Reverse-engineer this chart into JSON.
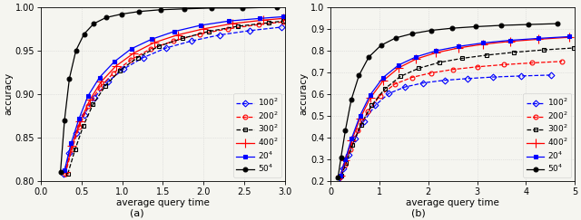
{
  "xlabel": "average query time",
  "ylabel": "accuracy",
  "subplot_a": {
    "label": "(a)",
    "xlim": [
      0,
      3
    ],
    "ylim": [
      0.8,
      1.0
    ],
    "yticks": [
      0.8,
      0.85,
      0.9,
      0.95,
      1.0
    ],
    "xticks": [
      0,
      0.5,
      1,
      1.5,
      2,
      2.5,
      3
    ],
    "series": [
      {
        "label": "100$^2$",
        "color": "#0000ff",
        "linestyle": "--",
        "marker": "D",
        "marker_fill": "none",
        "x": [
          0.28,
          0.35,
          0.43,
          0.53,
          0.66,
          0.82,
          1.02,
          1.26,
          1.54,
          1.85,
          2.2,
          2.57,
          2.96
        ],
        "y": [
          0.808,
          0.832,
          0.855,
          0.876,
          0.896,
          0.914,
          0.929,
          0.942,
          0.953,
          0.961,
          0.968,
          0.973,
          0.977
        ]
      },
      {
        "label": "200$^2$",
        "color": "#ff0000",
        "linestyle": "--",
        "marker": "o",
        "marker_fill": "none",
        "x": [
          0.3,
          0.38,
          0.47,
          0.58,
          0.72,
          0.89,
          1.1,
          1.35,
          1.63,
          1.95,
          2.3,
          2.68,
          2.98
        ],
        "y": [
          0.808,
          0.836,
          0.862,
          0.886,
          0.907,
          0.924,
          0.939,
          0.952,
          0.961,
          0.969,
          0.975,
          0.98,
          0.983
        ]
      },
      {
        "label": "300$^2$",
        "color": "#000000",
        "linestyle": "--",
        "marker": "s",
        "marker_fill": "none",
        "x": [
          0.33,
          0.42,
          0.52,
          0.64,
          0.79,
          0.97,
          1.19,
          1.45,
          1.74,
          2.06,
          2.42,
          2.8,
          2.98
        ],
        "y": [
          0.808,
          0.836,
          0.863,
          0.888,
          0.909,
          0.927,
          0.942,
          0.955,
          0.964,
          0.972,
          0.978,
          0.982,
          0.984
        ]
      },
      {
        "label": "400$^2$",
        "color": "#ff0000",
        "linestyle": "-",
        "marker": "+",
        "marker_fill": "full",
        "x": [
          0.3,
          0.38,
          0.48,
          0.6,
          0.74,
          0.92,
          1.14,
          1.39,
          1.68,
          2.0,
          2.35,
          2.73,
          2.98
        ],
        "y": [
          0.81,
          0.84,
          0.868,
          0.893,
          0.914,
          0.932,
          0.947,
          0.959,
          0.968,
          0.975,
          0.981,
          0.985,
          0.987
        ]
      },
      {
        "label": "20$^4$",
        "color": "#0000ff",
        "linestyle": "-",
        "marker": "s",
        "marker_fill": "full",
        "x": [
          0.29,
          0.37,
          0.47,
          0.58,
          0.72,
          0.9,
          1.11,
          1.36,
          1.64,
          1.96,
          2.31,
          2.69,
          2.98
        ],
        "y": [
          0.812,
          0.843,
          0.872,
          0.898,
          0.919,
          0.937,
          0.952,
          0.963,
          0.972,
          0.979,
          0.984,
          0.987,
          0.989
        ]
      },
      {
        "label": "50$^4$",
        "color": "#000000",
        "linestyle": "-",
        "marker": "o",
        "marker_fill": "full",
        "x": [
          0.24,
          0.29,
          0.35,
          0.43,
          0.53,
          0.65,
          0.8,
          0.99,
          1.21,
          1.47,
          1.76,
          2.1,
          2.48,
          2.9
        ],
        "y": [
          0.81,
          0.87,
          0.918,
          0.95,
          0.969,
          0.981,
          0.988,
          0.992,
          0.995,
          0.997,
          0.998,
          0.999,
          0.999,
          1.0
        ]
      }
    ]
  },
  "subplot_b": {
    "label": "(b)",
    "xlim": [
      0,
      5
    ],
    "ylim": [
      0.2,
      1.0
    ],
    "yticks": [
      0.2,
      0.3,
      0.4,
      0.5,
      0.6,
      0.7,
      0.8,
      0.9,
      1.0
    ],
    "xticks": [
      0,
      1,
      2,
      3,
      4,
      5
    ],
    "series": [
      {
        "label": "100$^2$",
        "color": "#0000ff",
        "linestyle": "--",
        "marker": "D",
        "marker_fill": "none",
        "x": [
          0.18,
          0.26,
          0.36,
          0.5,
          0.68,
          0.91,
          1.19,
          1.52,
          1.9,
          2.33,
          2.81,
          3.33,
          3.9,
          4.51
        ],
        "y": [
          0.215,
          0.258,
          0.32,
          0.395,
          0.474,
          0.547,
          0.602,
          0.632,
          0.651,
          0.663,
          0.671,
          0.678,
          0.683,
          0.687
        ]
      },
      {
        "label": "200$^2$",
        "color": "#ff0000",
        "linestyle": "--",
        "marker": "o",
        "marker_fill": "none",
        "x": [
          0.2,
          0.29,
          0.41,
          0.56,
          0.76,
          1.01,
          1.31,
          1.66,
          2.06,
          2.51,
          3.0,
          3.54,
          4.12,
          4.74
        ],
        "y": [
          0.218,
          0.272,
          0.346,
          0.432,
          0.518,
          0.592,
          0.645,
          0.676,
          0.697,
          0.713,
          0.725,
          0.735,
          0.743,
          0.75
        ]
      },
      {
        "label": "300$^2$",
        "color": "#000000",
        "linestyle": "--",
        "marker": "s",
        "marker_fill": "none",
        "x": [
          0.22,
          0.32,
          0.45,
          0.62,
          0.84,
          1.11,
          1.43,
          1.8,
          2.22,
          2.69,
          3.2,
          3.76,
          4.36,
          4.99
        ],
        "y": [
          0.222,
          0.284,
          0.366,
          0.459,
          0.548,
          0.624,
          0.681,
          0.718,
          0.745,
          0.764,
          0.779,
          0.792,
          0.803,
          0.812
        ]
      },
      {
        "label": "400$^2$",
        "color": "#ff0000",
        "linestyle": "-",
        "marker": "+",
        "marker_fill": "full",
        "x": [
          0.2,
          0.3,
          0.43,
          0.6,
          0.81,
          1.07,
          1.39,
          1.75,
          2.16,
          2.62,
          3.12,
          3.67,
          4.26,
          4.88
        ],
        "y": [
          0.222,
          0.293,
          0.385,
          0.486,
          0.581,
          0.66,
          0.72,
          0.761,
          0.79,
          0.812,
          0.829,
          0.842,
          0.852,
          0.861
        ]
      },
      {
        "label": "20$^4$",
        "color": "#0000ff",
        "linestyle": "-",
        "marker": "s",
        "marker_fill": "full",
        "x": [
          0.2,
          0.3,
          0.43,
          0.6,
          0.81,
          1.07,
          1.39,
          1.75,
          2.16,
          2.62,
          3.12,
          3.67,
          4.26,
          4.88
        ],
        "y": [
          0.224,
          0.299,
          0.396,
          0.5,
          0.596,
          0.675,
          0.733,
          0.771,
          0.799,
          0.819,
          0.835,
          0.847,
          0.856,
          0.864
        ]
      },
      {
        "label": "50$^4$",
        "color": "#000000",
        "linestyle": "-",
        "marker": "o",
        "marker_fill": "full",
        "x": [
          0.15,
          0.21,
          0.3,
          0.42,
          0.58,
          0.78,
          1.03,
          1.33,
          1.67,
          2.06,
          2.49,
          2.97,
          3.49,
          4.05,
          4.65
        ],
        "y": [
          0.216,
          0.306,
          0.432,
          0.572,
          0.686,
          0.77,
          0.824,
          0.858,
          0.878,
          0.893,
          0.903,
          0.91,
          0.916,
          0.92,
          0.924
        ]
      }
    ]
  },
  "bg_color": "#f5f5f0",
  "grid_color": "#d0d0d0",
  "grid_linestyle": ":",
  "legend_fontsize": 6.5,
  "tick_fontsize": 7,
  "label_fontsize": 7.5,
  "linewidth": 0.9,
  "markersize": 3.5
}
